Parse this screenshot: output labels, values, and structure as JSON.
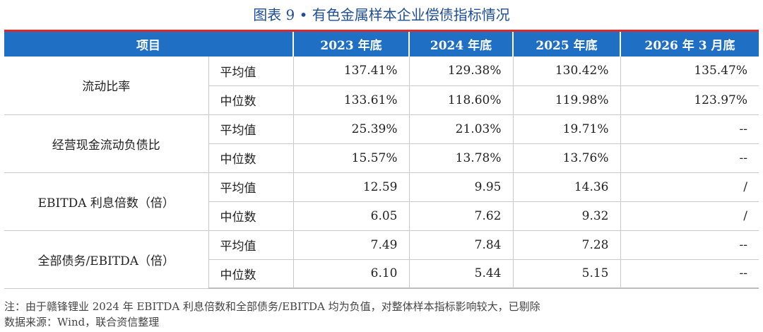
{
  "title": "图表 9 • 有色金属样本企业偿债指标情况",
  "table": {
    "header": {
      "item": "项目",
      "years": [
        "2023 年底",
        "2024 年底",
        "2025 年底",
        "2026 年 3 月底"
      ]
    },
    "groups": [
      {
        "metric": "流动比率",
        "rows": [
          {
            "stat": "平均值",
            "values": [
              "137.41%",
              "129.38%",
              "130.42%",
              "135.47%"
            ]
          },
          {
            "stat": "中位数",
            "values": [
              "133.61%",
              "118.60%",
              "119.98%",
              "123.97%"
            ]
          }
        ]
      },
      {
        "metric": "经营现金流动负债比",
        "rows": [
          {
            "stat": "平均值",
            "values": [
              "25.39%",
              "21.03%",
              "19.71%",
              "--"
            ]
          },
          {
            "stat": "中位数",
            "values": [
              "15.57%",
              "13.78%",
              "13.76%",
              "--"
            ]
          }
        ]
      },
      {
        "metric": "EBITDA 利息倍数（倍）",
        "rows": [
          {
            "stat": "平均值",
            "values": [
              "12.59",
              "9.95",
              "14.36",
              "/"
            ]
          },
          {
            "stat": "中位数",
            "values": [
              "6.05",
              "7.62",
              "9.32",
              "/"
            ]
          }
        ]
      },
      {
        "metric": "全部债务/EBITDA（倍）",
        "rows": [
          {
            "stat": "平均值",
            "values": [
              "7.49",
              "7.84",
              "7.28",
              "--"
            ]
          },
          {
            "stat": "中位数",
            "values": [
              "6.10",
              "5.44",
              "5.15",
              "--"
            ]
          }
        ]
      }
    ]
  },
  "notes": {
    "note": "注：由于赣锋锂业 2024 年 EBITDA 利息倍数和全部债务/EBITDA 均为负值，对整体样本指标影响较大，已剔除",
    "source": "数据来源：Wind，联合资信整理"
  },
  "colors": {
    "header_bg": "#1f6fc5",
    "title": "#1f4e96",
    "rule": "#d92b2b"
  }
}
